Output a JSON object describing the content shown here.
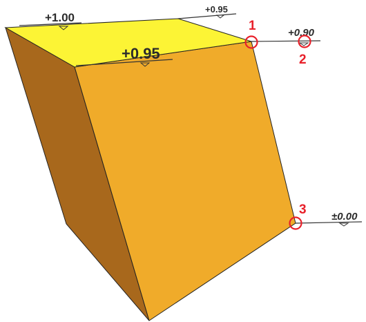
{
  "colors": {
    "top_face": "#FCF435",
    "front_face": "#F0AB2A",
    "side_face": "#A8681C",
    "edge": "#222222",
    "marker": "#E8202A",
    "label": "#2B2B2B"
  },
  "elevation_labels": [
    {
      "id": "top-back-left",
      "text": "+1.00"
    },
    {
      "id": "top-back-right",
      "text": "+0.95"
    },
    {
      "id": "top-front-left",
      "text": "+0.95"
    },
    {
      "id": "top-front-right",
      "text": "+0.90"
    },
    {
      "id": "bottom-right",
      "text": "±0.00"
    }
  ],
  "markers": [
    {
      "id": "1",
      "label": "1"
    },
    {
      "id": "2",
      "label": "2"
    },
    {
      "id": "3",
      "label": "3"
    }
  ]
}
